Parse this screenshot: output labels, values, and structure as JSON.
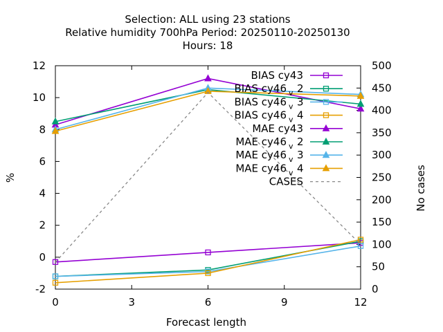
{
  "chart_data": {
    "type": "line",
    "title": [
      "Selection: ALL using    23 stations",
      "Relative humidity 700hPa   Period: 20250110-20250130",
      "Hours:  18"
    ],
    "xlabel": "Forecast length",
    "ylabel": "%",
    "y2label": "No cases",
    "x": [
      0,
      6,
      12
    ],
    "xticks": [
      0,
      3,
      6,
      9,
      12
    ],
    "xlim": [
      0,
      12
    ],
    "ylim": [
      -2,
      12
    ],
    "yticks": [
      -2,
      0,
      2,
      4,
      6,
      8,
      10,
      12
    ],
    "y2lim": [
      0,
      500
    ],
    "y2ticks": [
      0,
      50,
      100,
      150,
      200,
      250,
      300,
      350,
      400,
      450,
      500
    ],
    "grid": false,
    "legend_position": "top-right",
    "series": [
      {
        "name": "BIAS cy43",
        "name_parts": [
          "BIAS cy43",
          "",
          ""
        ],
        "axis": "y",
        "marker": "square",
        "color": "#9400d3",
        "values": [
          -0.3,
          0.3,
          0.9
        ]
      },
      {
        "name": "BIAS cy46 v 2",
        "name_parts": [
          "BIAS cy46",
          "v",
          "2"
        ],
        "axis": "y",
        "marker": "square",
        "color": "#009e73",
        "values": [
          -1.2,
          -0.8,
          1.0
        ]
      },
      {
        "name": "BIAS cy46 v 3",
        "name_parts": [
          "BIAS cy46",
          "v",
          "3"
        ],
        "axis": "y",
        "marker": "square",
        "color": "#56b4e9",
        "values": [
          -1.2,
          -0.9,
          0.7
        ]
      },
      {
        "name": "BIAS cy46 v 4",
        "name_parts": [
          "BIAS cy46",
          "v",
          "4"
        ],
        "axis": "y",
        "marker": "square",
        "color": "#e69f00",
        "values": [
          -1.6,
          -1.0,
          1.1
        ]
      },
      {
        "name": "MAE cy43",
        "name_parts": [
          "MAE cy43",
          "",
          ""
        ],
        "axis": "y",
        "marker": "triangle",
        "color": "#9400d3",
        "values": [
          8.3,
          11.2,
          9.3
        ]
      },
      {
        "name": "MAE cy46 v 2",
        "name_parts": [
          "MAE cy46",
          "v",
          "2"
        ],
        "axis": "y",
        "marker": "triangle",
        "color": "#009e73",
        "values": [
          8.5,
          10.5,
          9.6
        ]
      },
      {
        "name": "MAE cy46 v 3",
        "name_parts": [
          "MAE cy46",
          "v",
          "3"
        ],
        "axis": "y",
        "marker": "triangle",
        "color": "#56b4e9",
        "values": [
          8.0,
          10.6,
          10.2
        ]
      },
      {
        "name": "MAE cy46 v 4",
        "name_parts": [
          "MAE cy46",
          "v",
          "4"
        ],
        "axis": "y",
        "marker": "triangle",
        "color": "#e69f00",
        "values": [
          7.9,
          10.4,
          10.1
        ]
      },
      {
        "name": "CASES",
        "name_parts": [
          "CASES",
          "",
          ""
        ],
        "axis": "y2",
        "marker": "none",
        "dashed": true,
        "color": "#888888",
        "values": [
          60,
          440,
          100
        ]
      }
    ]
  }
}
